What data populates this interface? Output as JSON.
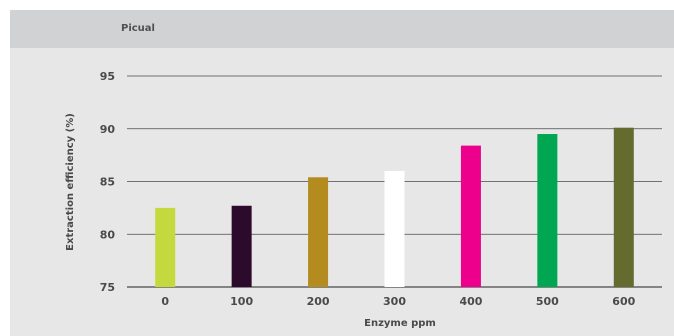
{
  "chart_data": {
    "type": "bar",
    "title": "Picual",
    "xlabel": "Enzyme ppm",
    "ylabel": "Extraction efficiency (%)",
    "categories": [
      "0",
      "100",
      "200",
      "300",
      "400",
      "500",
      "600"
    ],
    "values": [
      82.5,
      82.7,
      85.4,
      86.0,
      88.4,
      89.5,
      90.1
    ],
    "colors": [
      "#c4d93e",
      "#2b0a2b",
      "#b38b1e",
      "#ffffff",
      "#ec008c",
      "#00a651",
      "#636b2f"
    ],
    "ylim": [
      75,
      95
    ],
    "yticks": [
      "75",
      "80",
      "85",
      "90",
      "95"
    ],
    "grid": true,
    "legend": "none"
  }
}
